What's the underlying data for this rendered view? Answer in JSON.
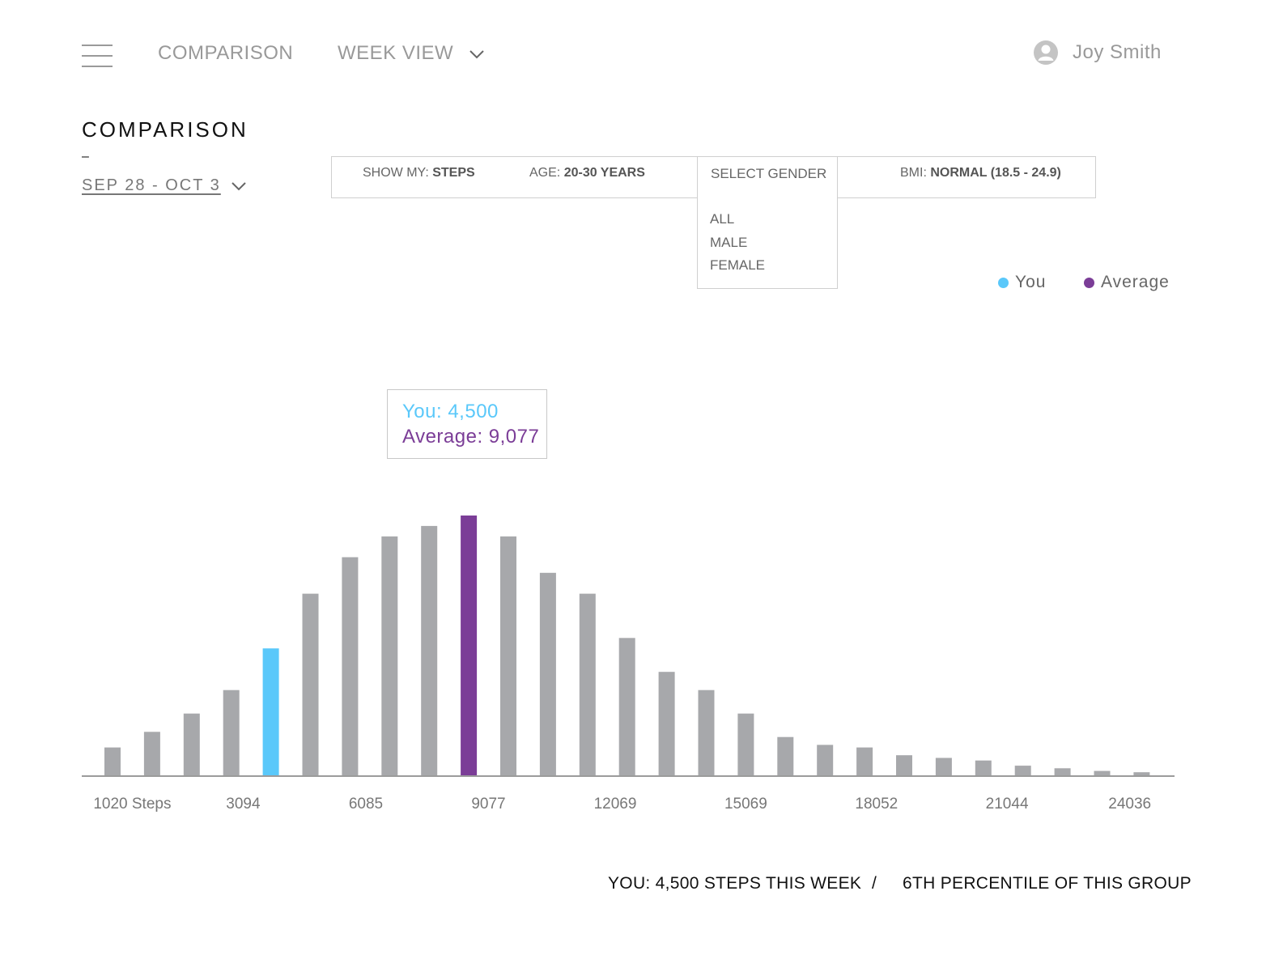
{
  "nav": {
    "menu_icon": "hamburger-menu-icon",
    "comparison_link": "COMPARISON",
    "week_view_label": "WEEK VIEW",
    "user_icon": "user-avatar-icon",
    "user_name": "Joy Smith"
  },
  "section": {
    "title": "COMPARISON",
    "dash": "–",
    "date_range": "SEP 28 - OCT 3"
  },
  "filters": {
    "show_my_label": "SHOW MY:",
    "show_my_value": "STEPS",
    "age_label": "AGE:",
    "age_value": "20-30 YEARS",
    "gender_placeholder": "SELECT GENDER",
    "gender_options": [
      "ALL",
      "MALE",
      "FEMALE"
    ],
    "bmi_label": "BMI:",
    "bmi_value": "NORMAL (18.5 - 24.9)"
  },
  "legend": {
    "you": "You",
    "average": "Average"
  },
  "tooltip": {
    "you": "You: 4,500",
    "average": "Average: 9,077"
  },
  "colors": {
    "you": "#5ac8fa",
    "average": "#7b3d97",
    "bar": "#a7a8ab",
    "axis": "#9b9b9b"
  },
  "chart_data": {
    "type": "bar",
    "bins": 27,
    "highlight": {
      "you_bin_index": 4,
      "average_bin_index": 9
    },
    "values": [
      11,
      17,
      24,
      33,
      49,
      70,
      84,
      92,
      96,
      100,
      92,
      78,
      70,
      53,
      40,
      33,
      24,
      15,
      12,
      11,
      8,
      7,
      6,
      4,
      3,
      2,
      1.5
    ],
    "tick_labels": [
      "1020 Steps",
      "3094",
      "6085",
      "9077",
      "12069",
      "15069",
      "18052",
      "21044",
      "24036"
    ],
    "tick_bin_positions": [
      0.5,
      3.3,
      6.4,
      9.5,
      12.7,
      16.0,
      19.3,
      22.6,
      25.7
    ]
  },
  "summary": {
    "you_steps": "YOU: 4,500 STEPS THIS WEEK",
    "separator": "/",
    "percentile": "6TH PERCENTILE OF THIS GROUP"
  }
}
